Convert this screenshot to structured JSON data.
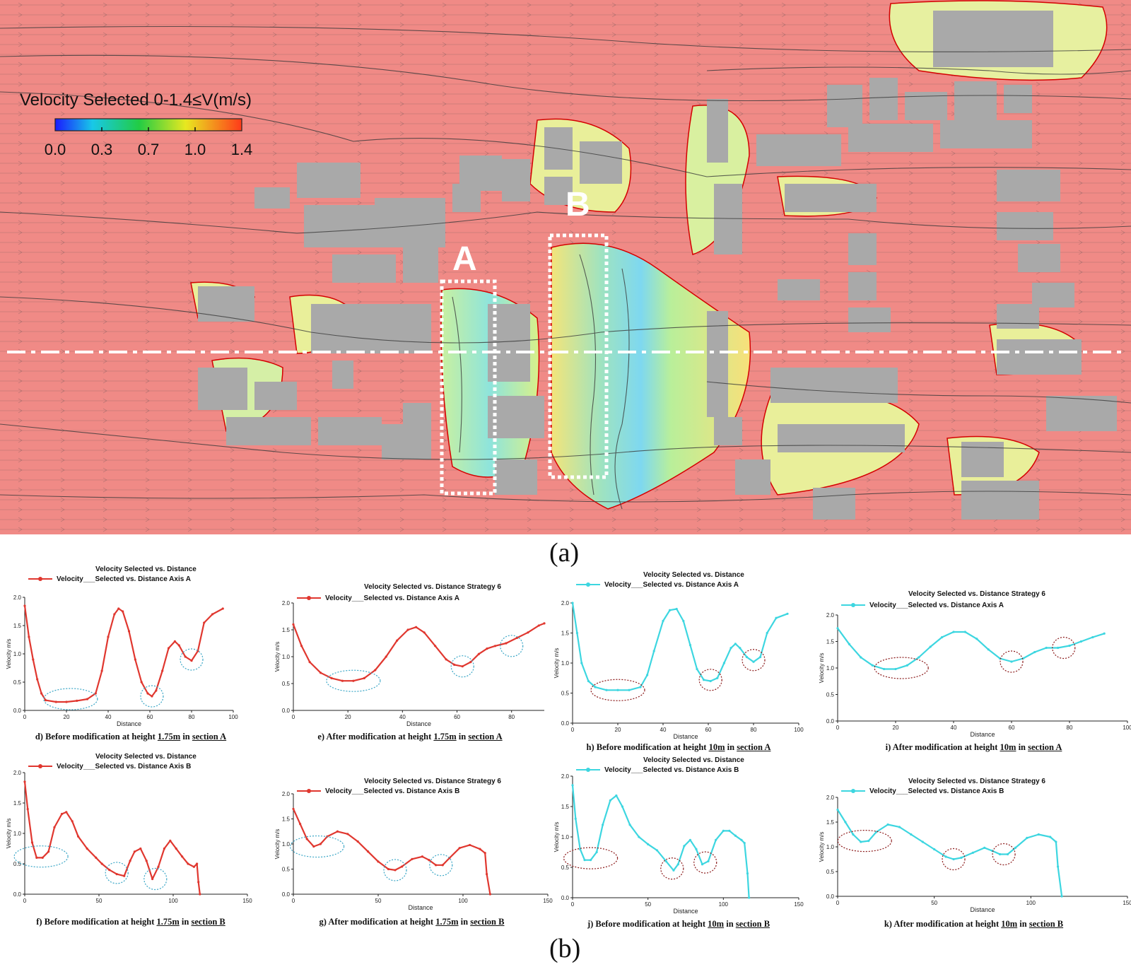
{
  "flow_map": {
    "legend_title": "Velocity Selected 0-1.4≤V(m/s)",
    "legend_ticks": [
      "0.0",
      "0.3",
      "0.7",
      "1.0",
      "1.4"
    ],
    "section_labels": [
      "A",
      "B"
    ],
    "colors": {
      "background": "#f08a86",
      "building": "#a9a9a9",
      "streamline": "#3a3a3a",
      "contour_edge": "#d40000"
    }
  },
  "figure_labels": {
    "top": "(a)",
    "bottom": "(b)"
  },
  "chart_data": [
    {
      "id": "d",
      "type": "line",
      "color": "#e0372f",
      "marker": "dot",
      "title": "Velocity Selected vs. Distance",
      "legend": "Velocity___Selected vs. Distance Axis A",
      "ylabel": "Velocity m/s",
      "xlabel": "Distance",
      "xlim": [
        0,
        100
      ],
      "ylim": [
        0,
        2.0
      ],
      "xticks": [
        0,
        20,
        40,
        60,
        80,
        100
      ],
      "yticks": [
        0.0,
        0.5,
        1.0,
        1.5,
        2.0
      ],
      "x": [
        0,
        2,
        4,
        6,
        8,
        10,
        15,
        20,
        25,
        30,
        34,
        37,
        40,
        43,
        45,
        47,
        50,
        53,
        56,
        59,
        61,
        63,
        66,
        69,
        72,
        74,
        77,
        80,
        83,
        86,
        90,
        95
      ],
      "y": [
        1.85,
        1.3,
        0.9,
        0.55,
        0.3,
        0.18,
        0.15,
        0.15,
        0.17,
        0.2,
        0.3,
        0.7,
        1.3,
        1.7,
        1.8,
        1.75,
        1.4,
        0.9,
        0.5,
        0.3,
        0.25,
        0.35,
        0.7,
        1.1,
        1.22,
        1.15,
        0.95,
        0.88,
        1.05,
        1.55,
        1.7,
        1.8
      ],
      "highlights": [
        [
          22,
          0.2
        ],
        [
          61,
          0.25
        ],
        [
          80,
          0.9
        ]
      ],
      "caption": [
        "d) Before modification at height ",
        "1.75m",
        " in ",
        "section A"
      ]
    },
    {
      "id": "e",
      "type": "line",
      "color": "#e0372f",
      "marker": "dot",
      "title": "Velocity Selected vs. Distance Strategy 6",
      "legend": "Velocity___Selected vs. Distance Axis A",
      "ylabel": "Velocity m/s",
      "xlabel": "Distance",
      "xlim": [
        0,
        92
      ],
      "ylim": [
        0,
        2.0
      ],
      "xticks": [
        0,
        20,
        40,
        60,
        80
      ],
      "yticks": [
        0.0,
        0.5,
        1.0,
        1.5,
        2.0
      ],
      "x": [
        0,
        3,
        6,
        10,
        14,
        18,
        22,
        26,
        30,
        34,
        38,
        42,
        45,
        48,
        52,
        56,
        59,
        62,
        65,
        68,
        71,
        74,
        78,
        82,
        86,
        90,
        92
      ],
      "y": [
        1.6,
        1.2,
        0.9,
        0.7,
        0.6,
        0.55,
        0.55,
        0.6,
        0.75,
        1.0,
        1.3,
        1.5,
        1.55,
        1.45,
        1.2,
        0.95,
        0.85,
        0.82,
        0.9,
        1.05,
        1.15,
        1.2,
        1.25,
        1.35,
        1.45,
        1.58,
        1.62
      ],
      "highlights": [
        [
          22,
          0.55
        ],
        [
          62,
          0.82
        ],
        [
          80,
          1.2
        ]
      ],
      "caption": [
        "e) After modification at height ",
        "1.75m",
        " in ",
        "section A"
      ]
    },
    {
      "id": "h",
      "type": "line",
      "color": "#3dd6e0",
      "marker": "dot",
      "title": "Velocity Selected vs. Distance",
      "legend": "Velocity___Selected vs. Distance Axis A",
      "ylabel": "Velocity m/s",
      "xlabel": "Distance",
      "xlim": [
        0,
        100
      ],
      "ylim": [
        0,
        2.0
      ],
      "xticks": [
        0,
        20,
        40,
        60,
        80,
        100
      ],
      "yticks": [
        0.0,
        0.5,
        1.0,
        1.5,
        2.0
      ],
      "x": [
        0,
        2,
        4,
        7,
        10,
        15,
        20,
        25,
        30,
        33,
        36,
        40,
        43,
        46,
        49,
        52,
        55,
        58,
        61,
        64,
        67,
        70,
        72,
        74,
        77,
        80,
        83,
        86,
        90,
        95
      ],
      "y": [
        2.0,
        1.5,
        1.0,
        0.7,
        0.6,
        0.55,
        0.55,
        0.55,
        0.6,
        0.8,
        1.2,
        1.7,
        1.88,
        1.9,
        1.7,
        1.3,
        0.9,
        0.72,
        0.7,
        0.75,
        1.0,
        1.25,
        1.32,
        1.25,
        1.1,
        1.02,
        1.1,
        1.5,
        1.75,
        1.82
      ],
      "highlights": [
        [
          20,
          0.55
        ],
        [
          61,
          0.72
        ],
        [
          80,
          1.05
        ]
      ],
      "caption": [
        "h) Before modification at height ",
        "10m",
        " in ",
        "section A"
      ]
    },
    {
      "id": "i",
      "type": "line",
      "color": "#3dd6e0",
      "marker": "dot",
      "title": "Velocity Selected vs. Distance Strategy 6",
      "legend": "Velocity___Selected vs. Distance Axis A",
      "ylabel": "Velocity m/s",
      "xlabel": "Distance",
      "xlim": [
        0,
        100
      ],
      "ylim": [
        0,
        2.0
      ],
      "xticks": [
        0,
        20,
        40,
        60,
        80,
        100
      ],
      "yticks": [
        0.0,
        0.5,
        1.0,
        1.5,
        2.0
      ],
      "x": [
        0,
        4,
        8,
        12,
        16,
        20,
        24,
        28,
        32,
        36,
        40,
        44,
        48,
        52,
        56,
        60,
        64,
        68,
        72,
        76,
        80,
        84,
        88,
        92
      ],
      "y": [
        1.75,
        1.45,
        1.2,
        1.05,
        0.98,
        0.98,
        1.05,
        1.2,
        1.4,
        1.58,
        1.68,
        1.68,
        1.55,
        1.35,
        1.18,
        1.12,
        1.18,
        1.3,
        1.38,
        1.38,
        1.42,
        1.5,
        1.58,
        1.65
      ],
      "highlights": [
        [
          22,
          1.0
        ],
        [
          60,
          1.12
        ],
        [
          78,
          1.38
        ]
      ],
      "caption": [
        "i) After modification at height ",
        "10m",
        " in ",
        "section A"
      ]
    },
    {
      "id": "f",
      "type": "line",
      "color": "#e0372f",
      "marker": "dot",
      "title": "Velocity Selected vs. Distance",
      "legend": "Velocity___Selected vs. Distance Axis B",
      "ylabel": "Velocity m/s",
      "xlabel": "",
      "xlim": [
        0,
        150
      ],
      "ylim": [
        0,
        2.0
      ],
      "xticks": [
        0,
        50,
        100,
        150
      ],
      "yticks": [
        0.0,
        0.5,
        1.0,
        1.5,
        2.0
      ],
      "x": [
        0,
        2,
        5,
        8,
        12,
        16,
        20,
        25,
        28,
        32,
        36,
        42,
        48,
        52,
        57,
        62,
        67,
        71,
        74,
        78,
        82,
        86,
        90,
        94,
        98,
        102,
        106,
        110,
        114,
        116,
        117,
        118
      ],
      "y": [
        1.85,
        1.4,
        0.85,
        0.6,
        0.6,
        0.7,
        1.1,
        1.32,
        1.35,
        1.2,
        0.95,
        0.75,
        0.6,
        0.5,
        0.4,
        0.33,
        0.3,
        0.55,
        0.7,
        0.75,
        0.55,
        0.25,
        0.45,
        0.75,
        0.88,
        0.75,
        0.62,
        0.5,
        0.45,
        0.5,
        0.2,
        0.0
      ],
      "highlights": [
        [
          11,
          0.62
        ],
        [
          62,
          0.35
        ],
        [
          88,
          0.25
        ]
      ],
      "caption": [
        "f) Before modification at height ",
        "1.75m",
        " in ",
        "section B"
      ]
    },
    {
      "id": "g",
      "type": "line",
      "color": "#e0372f",
      "marker": "dot",
      "title": "Velocity Selected vs. Distance Strategy 6",
      "legend": "Velocity___Selected vs. Distance Axis B",
      "ylabel": "Velocity m/s",
      "xlabel": "Distance",
      "xlim": [
        0,
        150
      ],
      "ylim": [
        0,
        2.0
      ],
      "xticks": [
        0,
        50,
        100,
        150
      ],
      "yticks": [
        0.0,
        0.5,
        1.0,
        1.5,
        2.0
      ],
      "x": [
        0,
        4,
        8,
        12,
        16,
        20,
        26,
        32,
        38,
        44,
        50,
        56,
        60,
        64,
        70,
        76,
        80,
        84,
        88,
        92,
        98,
        104,
        110,
        113,
        114,
        116
      ],
      "y": [
        1.7,
        1.4,
        1.1,
        0.95,
        1.0,
        1.15,
        1.25,
        1.2,
        1.05,
        0.85,
        0.65,
        0.5,
        0.48,
        0.55,
        0.7,
        0.75,
        0.68,
        0.58,
        0.58,
        0.72,
        0.92,
        0.98,
        0.9,
        0.82,
        0.4,
        0.0
      ],
      "highlights": [
        [
          14,
          0.95
        ],
        [
          60,
          0.48
        ],
        [
          87,
          0.58
        ]
      ],
      "caption": [
        "g) After modification at height ",
        "1.75m",
        " in ",
        "section B"
      ]
    },
    {
      "id": "j",
      "type": "line",
      "color": "#3dd6e0",
      "marker": "dot",
      "title": "Velocity Selected vs. Distance",
      "legend": "Velocity___Selected vs. Distance Axis B",
      "ylabel": "Velocity m/s",
      "xlabel": "Distance",
      "xlim": [
        0,
        150
      ],
      "ylim": [
        0,
        2.0
      ],
      "xticks": [
        0,
        50,
        100,
        150
      ],
      "yticks": [
        0.0,
        0.5,
        1.0,
        1.5,
        2.0
      ],
      "x": [
        0,
        2,
        5,
        8,
        12,
        16,
        20,
        25,
        29,
        33,
        38,
        44,
        50,
        56,
        62,
        67,
        70,
        74,
        78,
        82,
        86,
        90,
        95,
        100,
        104,
        108,
        112,
        114,
        116,
        117
      ],
      "y": [
        1.85,
        1.3,
        0.8,
        0.62,
        0.62,
        0.75,
        1.2,
        1.6,
        1.68,
        1.5,
        1.2,
        1.0,
        0.88,
        0.78,
        0.6,
        0.45,
        0.55,
        0.85,
        0.95,
        0.8,
        0.55,
        0.6,
        0.95,
        1.1,
        1.1,
        1.02,
        0.95,
        0.9,
        0.4,
        0.0
      ],
      "highlights": [
        [
          12,
          0.65
        ],
        [
          66,
          0.48
        ],
        [
          88,
          0.58
        ]
      ],
      "caption": [
        "j) Before modification at height ",
        "10m",
        " in ",
        "section B"
      ]
    },
    {
      "id": "k",
      "type": "line",
      "color": "#3dd6e0",
      "marker": "dot",
      "title": "Velocity Selected vs. Distance Strategy 6",
      "legend": "Velocity___Selected vs. Distance Axis B",
      "ylabel": "Velocity m/s",
      "xlabel": "Distance",
      "xlim": [
        0,
        150
      ],
      "ylim": [
        0,
        2.0
      ],
      "xticks": [
        0,
        50,
        100,
        150
      ],
      "yticks": [
        0.0,
        0.5,
        1.0,
        1.5,
        2.0
      ],
      "x": [
        0,
        4,
        8,
        12,
        16,
        20,
        26,
        32,
        38,
        44,
        50,
        56,
        60,
        64,
        70,
        76,
        80,
        84,
        88,
        92,
        98,
        104,
        110,
        113,
        114,
        116
      ],
      "y": [
        1.75,
        1.5,
        1.25,
        1.1,
        1.12,
        1.3,
        1.45,
        1.4,
        1.25,
        1.1,
        0.95,
        0.8,
        0.75,
        0.78,
        0.88,
        0.98,
        0.92,
        0.85,
        0.85,
        0.98,
        1.18,
        1.25,
        1.2,
        1.1,
        0.6,
        0.0
      ],
      "highlights": [
        [
          14,
          1.12
        ],
        [
          60,
          0.75
        ],
        [
          86,
          0.85
        ]
      ],
      "caption": [
        "k) After modification at height ",
        "10m",
        " in ",
        "section B"
      ]
    }
  ]
}
